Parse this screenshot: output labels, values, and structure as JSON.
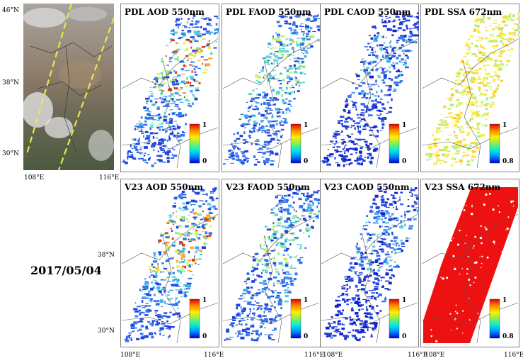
{
  "date": "2017/05/04",
  "lat_labels": {
    "n46": "46°N",
    "n38": "38°N",
    "n30": "30°N"
  },
  "lon_labels": {
    "e108": "108°E",
    "e116": "116°E"
  },
  "panels": [
    {
      "title": "PDL AOD 550nm",
      "cb_top": "1",
      "cb_bottom": "0",
      "style": "aod"
    },
    {
      "title": "PDL FAOD 550nm",
      "cb_top": "1",
      "cb_bottom": "0",
      "style": "faod"
    },
    {
      "title": "PDL CAOD 550nm",
      "cb_top": "1",
      "cb_bottom": "0",
      "style": "caod"
    },
    {
      "title": "PDL SSA 672nm",
      "cb_top": "1",
      "cb_bottom": "0.8",
      "style": "ssa"
    },
    {
      "title": "V23 AOD 550nm",
      "cb_top": "1",
      "cb_bottom": "0",
      "style": "aod"
    },
    {
      "title": "V23 FAOD 550nm",
      "cb_top": "1",
      "cb_bottom": "0",
      "style": "faod"
    },
    {
      "title": "V23 CAOD 550nm",
      "cb_top": "1",
      "cb_bottom": "0",
      "style": "caod"
    },
    {
      "title": "V23 SSA 672nm",
      "cb_top": "1",
      "cb_bottom": "0.8",
      "style": "red"
    }
  ],
  "colors": {
    "swath_line": "#e8e84a",
    "ssa_high": "#ee1111"
  }
}
